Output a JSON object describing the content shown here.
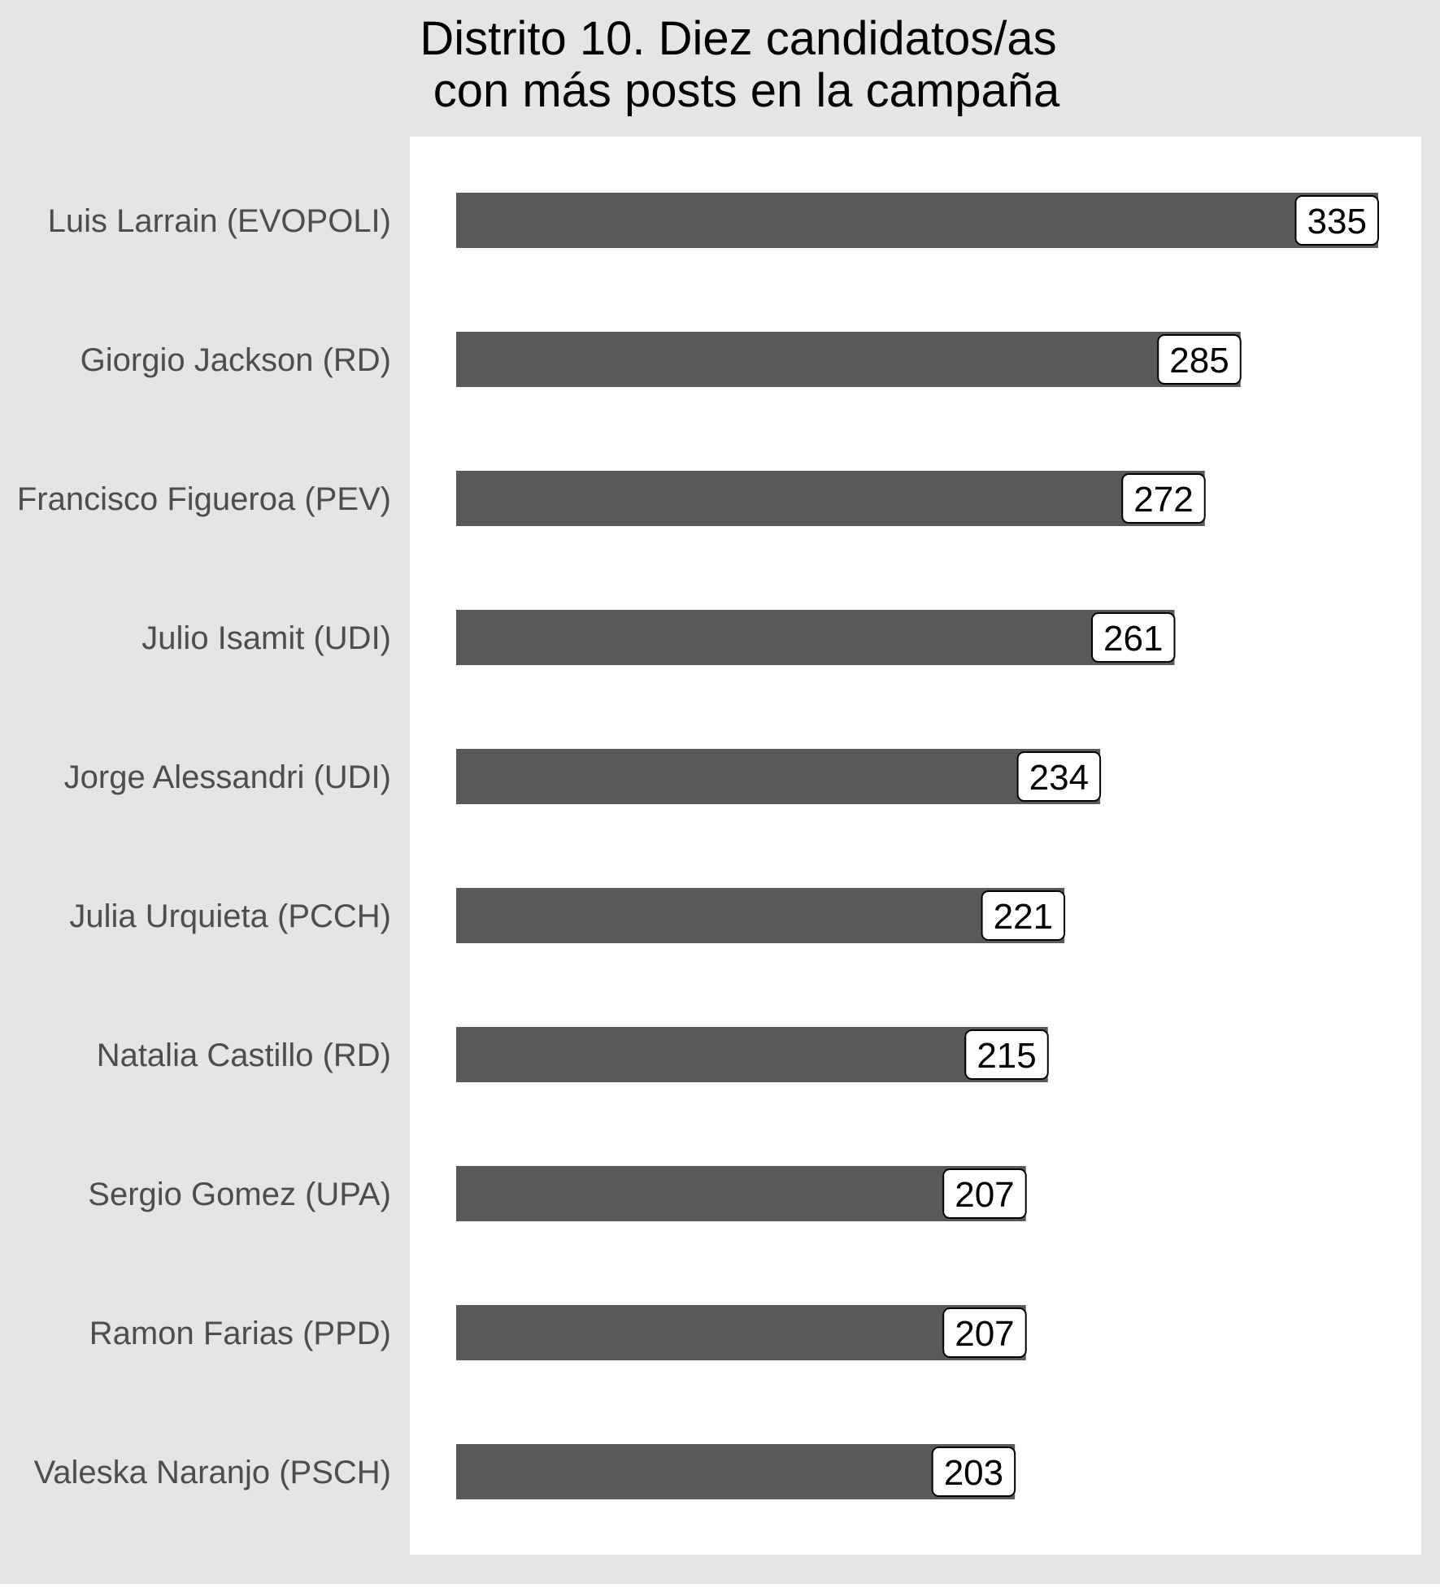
{
  "chart_data": {
    "type": "bar",
    "orientation": "horizontal",
    "title_lines": [
      "Distrito 10. Diez candidatos/as",
      "con más posts en la campaña"
    ],
    "xlabel": "",
    "ylabel": "",
    "grid": false,
    "legend": "none",
    "xlim": [
      0,
      350
    ],
    "categories": [
      "Luis Larrain (EVOPOLI)",
      "Giorgio Jackson (RD)",
      "Francisco Figueroa (PEV)",
      "Julio Isamit (UDI)",
      "Jorge Alessandri (UDI)",
      "Julia Urquieta (PCCH)",
      "Natalia Castillo (RD)",
      "Sergio Gomez (UPA)",
      "Ramon Farias (PPD)",
      "Valeska Naranjo (PSCH)"
    ],
    "values": [
      335,
      285,
      272,
      261,
      234,
      221,
      215,
      207,
      207,
      203
    ],
    "data_labels": [
      "335",
      "285",
      "272",
      "261",
      "234",
      "221",
      "215",
      "207",
      "207",
      "203"
    ]
  },
  "colors": {
    "outer_background": "#e5e5e5",
    "panel_background": "#ffffff",
    "bar_fill": "#595959",
    "label_box_fill": "#ffffff",
    "label_box_stroke": "#000000",
    "category_text": "#4d4d4d",
    "title_text": "#000000"
  }
}
